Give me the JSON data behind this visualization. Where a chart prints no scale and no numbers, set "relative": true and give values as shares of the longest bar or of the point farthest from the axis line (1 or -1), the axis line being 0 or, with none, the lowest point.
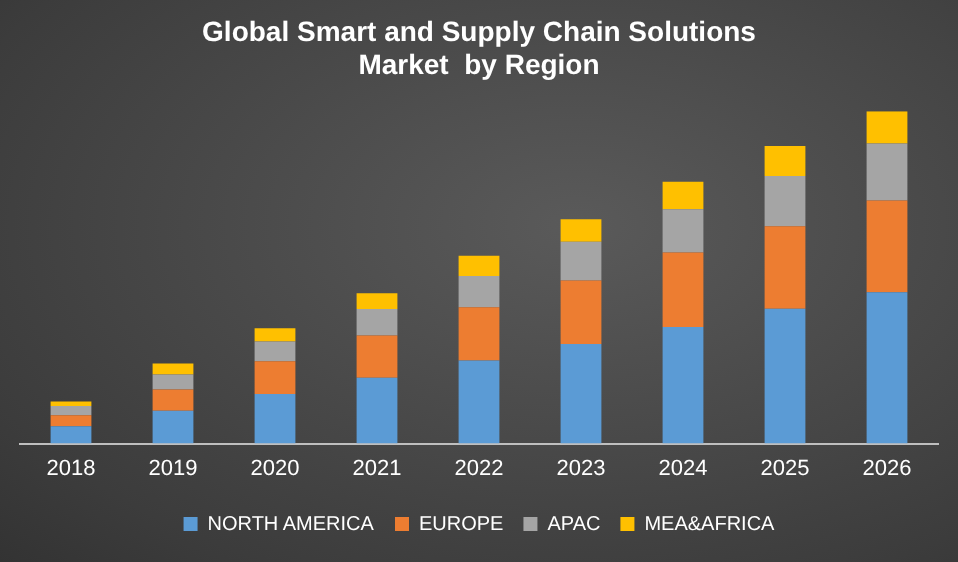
{
  "chart_data": {
    "type": "bar",
    "title": "Global Smart and Supply Chain Solutions\nMarket  by Region",
    "relative": true,
    "stacked": true,
    "legend": "bottom",
    "grid": false,
    "categories": [
      "2018",
      "2019",
      "2020",
      "2021",
      "2022",
      "2023",
      "2024",
      "2025",
      "2026"
    ],
    "series": [
      {
        "name": "NORTH AMERICA",
        "color": "#5b9bd5",
        "values": [
          0.052,
          0.099,
          0.149,
          0.198,
          0.25,
          0.3,
          0.351,
          0.406,
          0.455
        ]
      },
      {
        "name": "EUROPE",
        "color": "#ed7d31",
        "values": [
          0.033,
          0.064,
          0.099,
          0.127,
          0.16,
          0.191,
          0.224,
          0.248,
          0.276
        ]
      },
      {
        "name": "APAC",
        "color": "#a5a5a5",
        "values": [
          0.028,
          0.045,
          0.059,
          0.08,
          0.094,
          0.116,
          0.13,
          0.151,
          0.172
        ]
      },
      {
        "name": "MEA&AFRICA",
        "color": "#ffc000",
        "values": [
          0.014,
          0.033,
          0.04,
          0.047,
          0.061,
          0.068,
          0.083,
          0.09,
          0.097
        ]
      }
    ]
  }
}
